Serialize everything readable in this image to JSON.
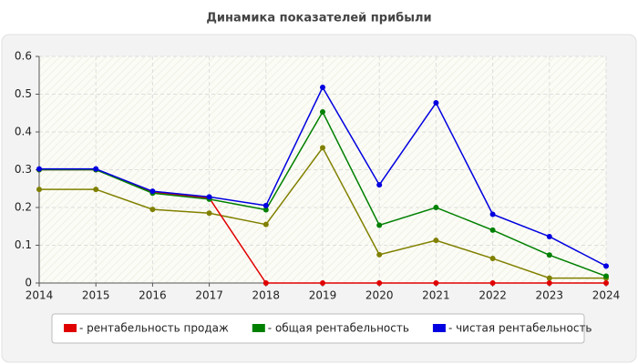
{
  "chart_data": {
    "type": "line",
    "title": "Динамика показателей прибыли",
    "x": [
      2014,
      2015,
      2016,
      2017,
      2018,
      2019,
      2020,
      2021,
      2022,
      2023,
      2024
    ],
    "xlim": [
      2014,
      2024
    ],
    "xticks": [
      2014,
      2015,
      2016,
      2017,
      2018,
      2019,
      2020,
      2021,
      2022,
      2023,
      2024
    ],
    "ylim": [
      0,
      0.6
    ],
    "yticks": [
      0,
      0.1,
      0.2,
      0.3,
      0.4,
      0.5,
      0.6
    ],
    "grid": true,
    "series": [
      {
        "color": "#808000",
        "values": [
          0.248,
          0.248,
          0.195,
          0.185,
          0.155,
          0.358,
          0.075,
          0.113,
          0.065,
          0.013,
          0.013
        ]
      },
      {
        "name": "- рентабельность продаж",
        "color": "#e00000",
        "values": [
          0.3,
          0.3,
          0.24,
          0.225,
          0,
          0,
          0,
          0,
          0,
          0,
          0
        ]
      },
      {
        "name": "- общая рентабельность",
        "color": "#008000",
        "values": [
          0.3,
          0.3,
          0.238,
          0.222,
          0.194,
          0.453,
          0.153,
          0.2,
          0.14,
          0.074,
          0.018
        ]
      },
      {
        "name": "- чистая рентабельность",
        "color": "#0000e0",
        "values": [
          0.302,
          0.302,
          0.243,
          0.228,
          0.205,
          0.518,
          0.26,
          0.477,
          0.182,
          0.123,
          0.045
        ]
      }
    ]
  }
}
